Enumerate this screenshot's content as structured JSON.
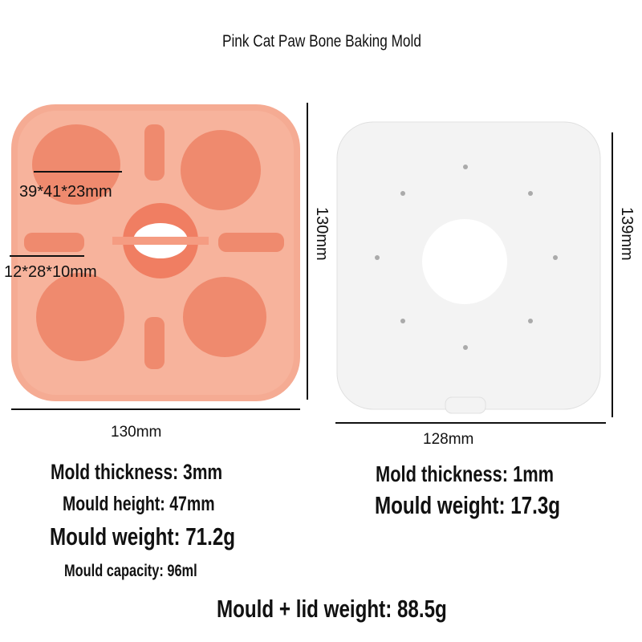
{
  "title": "Pink Cat Paw Bone Baking Mold",
  "mold": {
    "cavity_label_paw": "39*41*23mm",
    "cavity_label_bone": "12*28*10mm",
    "height_label": "130mm",
    "width_label": "130mm",
    "color": "#f5ab93",
    "cavity_color": "#ef8a6e"
  },
  "lid": {
    "height_label": "139mm",
    "width_label": "128mm",
    "color": "#f7f7f7"
  },
  "specs_mold": [
    "Mold thickness: 3mm",
    "Mould height: 47mm",
    "Mould weight: 71.2g",
    "Mould capacity: 96ml"
  ],
  "specs_lid": [
    "Mold thickness: 1mm",
    "Mould weight: 17.3g"
  ],
  "total": "Mould + lid weight: 88.5g"
}
